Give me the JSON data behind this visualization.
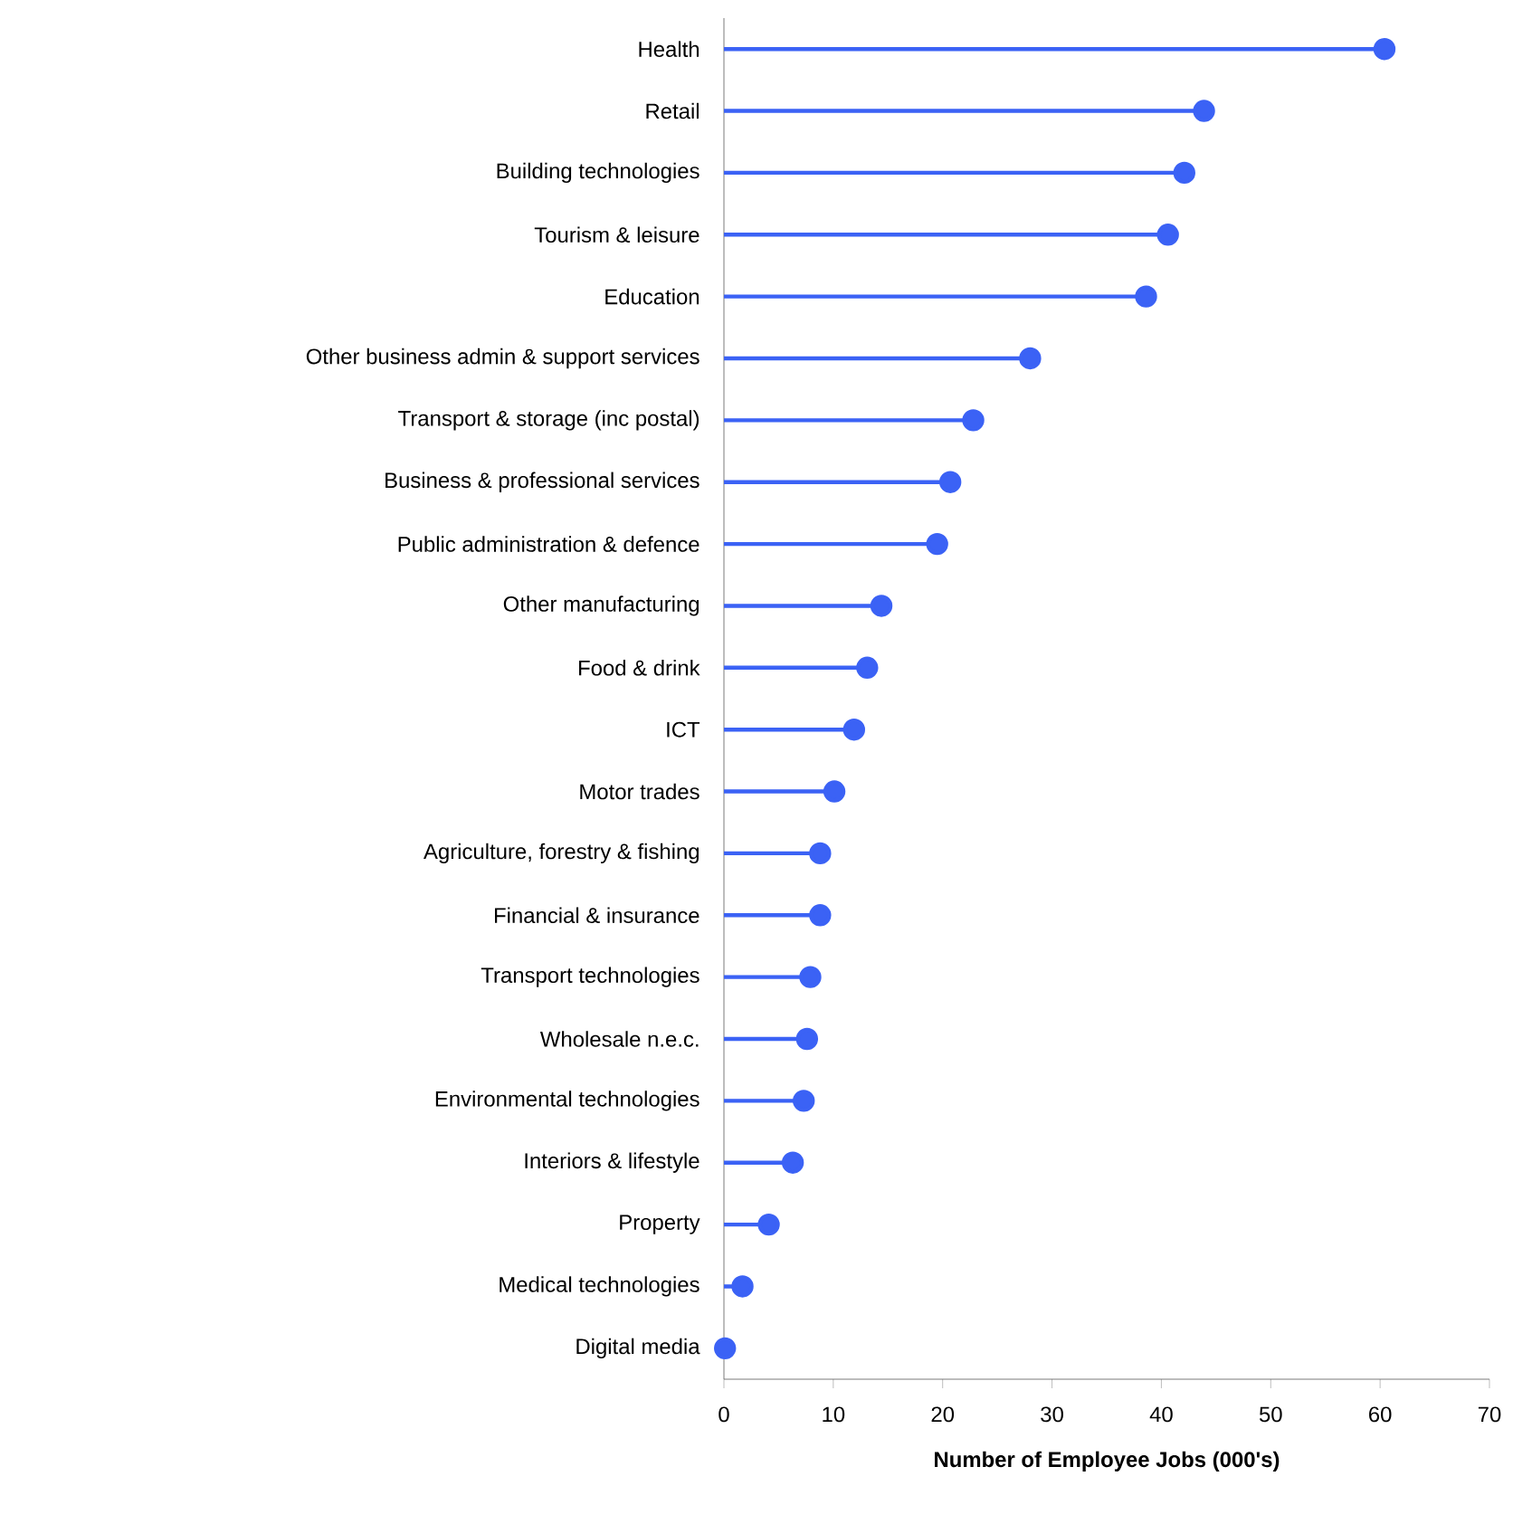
{
  "chart_data": {
    "type": "lollipop",
    "orientation": "horizontal",
    "xlabel": "Number of Employee Jobs (000's)",
    "categories": [
      "Health",
      "Retail",
      "Building technologies",
      "Tourism & leisure",
      "Education",
      "Other business admin & support services",
      "Transport & storage (inc postal)",
      "Business & professional services",
      "Public administration & defence",
      "Other manufacturing",
      "Food & drink",
      "ICT",
      "Motor trades",
      "Agriculture, forestry & fishing",
      "Financial & insurance",
      "Transport technologies",
      "Wholesale n.e.c.",
      "Environmental technologies",
      "Interiors & lifestyle",
      "Property",
      "Medical technologies",
      "Digital media"
    ],
    "values": [
      60.4,
      43.9,
      42.1,
      40.6,
      38.6,
      28.0,
      22.8,
      20.7,
      19.5,
      14.4,
      13.1,
      11.9,
      10.1,
      8.8,
      8.8,
      7.9,
      7.6,
      7.3,
      6.3,
      4.1,
      1.7,
      0.1
    ],
    "color": "#3b62f5",
    "marker": "circle",
    "xlim": [
      0,
      70
    ],
    "xticks": [
      0,
      10,
      20,
      30,
      40,
      50,
      60,
      70
    ]
  }
}
